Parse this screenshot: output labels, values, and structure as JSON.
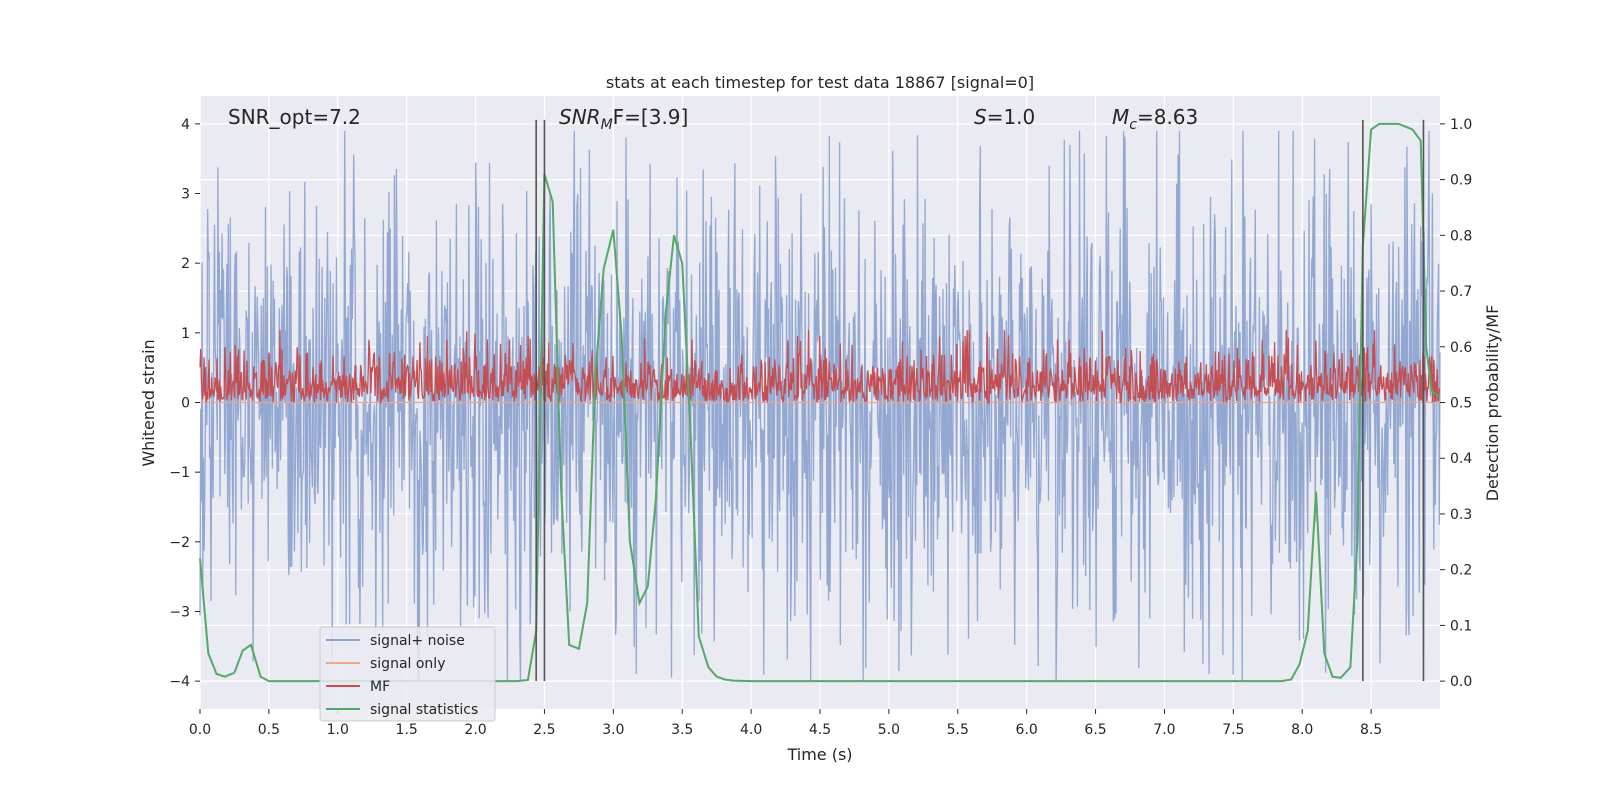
{
  "chart_data": {
    "type": "line",
    "title": "stats at each timestep for test data 18867 [signal=0]",
    "xlabel": "Time (s)",
    "ylabel_left": "Whitened strain",
    "ylabel_right": "Detection probability/MF",
    "xlim": [
      0.0,
      9.0
    ],
    "ylim_left": [
      -4.4,
      4.4
    ],
    "ylim_right": [
      -0.05,
      1.05
    ],
    "x_ticks": [
      0.0,
      0.5,
      1.0,
      1.5,
      2.0,
      2.5,
      3.0,
      3.5,
      4.0,
      4.5,
      5.0,
      5.5,
      6.0,
      6.5,
      7.0,
      7.5,
      8.0,
      8.5
    ],
    "x_tick_labels": [
      "0.0",
      "0.5",
      "1.0",
      "1.5",
      "2.0",
      "2.5",
      "3.0",
      "3.5",
      "4.0",
      "4.5",
      "5.0",
      "5.5",
      "6.0",
      "6.5",
      "7.0",
      "7.5",
      "8.0",
      "8.5"
    ],
    "y_left_ticks": [
      -4,
      -3,
      -2,
      -1,
      0,
      1,
      2,
      3,
      4
    ],
    "y_left_tick_labels": [
      "−4",
      "−3",
      "−2",
      "−1",
      "0",
      "1",
      "2",
      "3",
      "4"
    ],
    "y_right_ticks": [
      0.0,
      0.1,
      0.2,
      0.3,
      0.4,
      0.5,
      0.6,
      0.7,
      0.8,
      0.9,
      1.0
    ],
    "y_right_tick_labels": [
      "0.0",
      "0.1",
      "0.2",
      "0.3",
      "0.4",
      "0.5",
      "0.6",
      "0.7",
      "0.8",
      "0.9",
      "1.0"
    ],
    "grid": true,
    "legend_placement": "lower-left",
    "annotations": [
      {
        "plain": "SNR_opt=7.2",
        "key": "snr_opt"
      },
      {
        "var": "SNR",
        "sub": "M",
        "rest": "F=[3.9]",
        "key": "snr_mf"
      },
      {
        "var": "S",
        "rest": "=1.0",
        "key": "s"
      },
      {
        "var": "M",
        "sub": "c",
        "rest": "=8.63",
        "key": "mc"
      }
    ],
    "vertical_lines": [
      2.44,
      2.5,
      8.44,
      8.88
    ],
    "series": [
      {
        "name": "signal+ noise",
        "color": "#8da3cf",
        "axis": "left",
        "kind": "noise",
        "amplitude_envelope": 1.6,
        "peak_max": 3.9,
        "peak_min": -4.0,
        "n_points": 1800
      },
      {
        "name": "signal only",
        "color": "#eea58c",
        "axis": "left",
        "kind": "flat",
        "value": 0.0
      },
      {
        "name": "MF",
        "color": "#c44e52",
        "axis": "right",
        "kind": "noise_band",
        "baseline": 0.5,
        "range": [
          0.5,
          0.63
        ],
        "n_points": 1800
      },
      {
        "name": "signal statistics",
        "color": "#55a868",
        "axis": "right",
        "x": [
          0.0,
          0.06,
          0.12,
          0.18,
          0.25,
          0.31,
          0.37,
          0.44,
          0.5,
          0.6,
          1.0,
          1.5,
          2.0,
          2.3,
          2.38,
          2.44,
          2.5,
          2.56,
          2.62,
          2.68,
          2.75,
          2.81,
          2.87,
          2.93,
          3.0,
          3.06,
          3.12,
          3.19,
          3.25,
          3.31,
          3.38,
          3.44,
          3.5,
          3.56,
          3.62,
          3.69,
          3.75,
          3.81,
          3.87,
          4.0,
          4.5,
          5.0,
          6.0,
          7.0,
          7.5,
          7.85,
          7.92,
          7.98,
          8.04,
          8.1,
          8.16,
          8.22,
          8.28,
          8.35,
          8.4,
          8.44,
          8.5,
          8.56,
          8.62,
          8.7,
          8.8,
          8.86,
          8.9,
          8.94,
          9.0
        ],
        "y": [
          0.22,
          0.05,
          0.013,
          0.008,
          0.015,
          0.055,
          0.065,
          0.008,
          0.0,
          0.0,
          0.0,
          0.0,
          0.0,
          0.0,
          0.002,
          0.09,
          0.91,
          0.86,
          0.35,
          0.065,
          0.058,
          0.14,
          0.55,
          0.74,
          0.81,
          0.62,
          0.25,
          0.14,
          0.17,
          0.33,
          0.66,
          0.8,
          0.75,
          0.45,
          0.08,
          0.025,
          0.008,
          0.003,
          0.001,
          0.0,
          0.0,
          0.0,
          0.0,
          0.0,
          0.0,
          0.0,
          0.003,
          0.03,
          0.09,
          0.34,
          0.05,
          0.008,
          0.006,
          0.025,
          0.25,
          0.78,
          0.99,
          1.0,
          1.0,
          1.0,
          0.99,
          0.97,
          0.6,
          0.52,
          0.51
        ]
      }
    ]
  }
}
